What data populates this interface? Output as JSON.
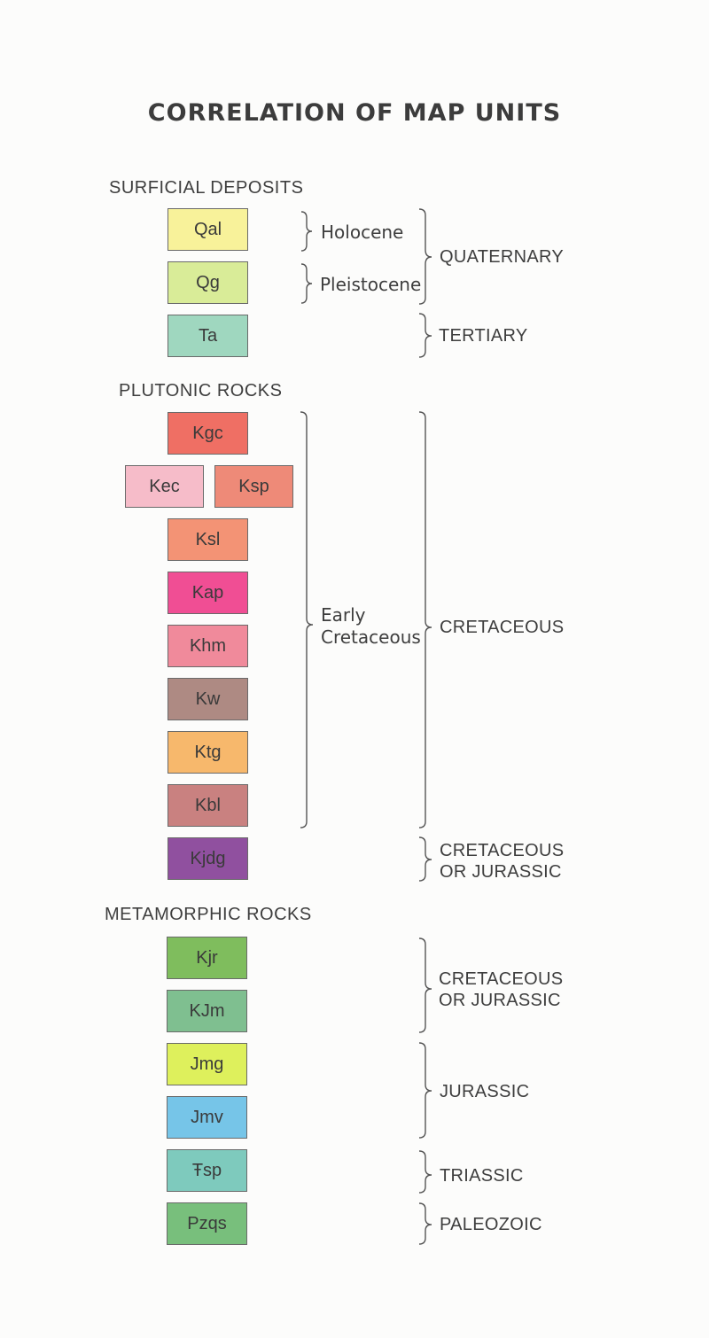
{
  "title": "CORRELATION OF MAP UNITS",
  "sections": {
    "surficial": "SURFICIAL  DEPOSITS",
    "plutonic": "PLUTONIC  ROCKS",
    "metamorphic": "METAMORPHIC  ROCKS"
  },
  "units": {
    "Qal": {
      "label": "Qal",
      "color": "#f8f29a"
    },
    "Qg": {
      "label": "Qg",
      "color": "#d9ec98"
    },
    "Ta": {
      "label": "Ta",
      "color": "#9fd7bf"
    },
    "Kgc": {
      "label": "Kgc",
      "color": "#ef6f64"
    },
    "Kec": {
      "label": "Kec",
      "color": "#f6bcc9"
    },
    "Ksp": {
      "label": "Ksp",
      "color": "#ee8a78"
    },
    "Ksl": {
      "label": "Ksl",
      "color": "#f39375"
    },
    "Kap": {
      "label": "Kap",
      "color": "#f04e94"
    },
    "Khm": {
      "label": "Khm",
      "color": "#f08a9b"
    },
    "Kw": {
      "label": "Kw",
      "color": "#ae8a83"
    },
    "Ktg": {
      "label": "Ktg",
      "color": "#f7b86c"
    },
    "Kbl": {
      "label": "Kbl",
      "color": "#c98180"
    },
    "Kjdg": {
      "label": "Kjdg",
      "color": "#90509f"
    },
    "Kjr": {
      "label": "Kjr",
      "color": "#7fbd5d"
    },
    "KJm": {
      "label": "KJm",
      "color": "#7fbf90"
    },
    "Jmg": {
      "label": "Jmg",
      "color": "#def05c"
    },
    "Jmv": {
      "label": "Jmv",
      "color": "#76c5e8"
    },
    "Trsp": {
      "label": "Ŧsp",
      "color": "#7ecabd"
    },
    "Pzqs": {
      "label": "Pzqs",
      "color": "#78bf7c"
    }
  },
  "epochs": {
    "holocene": "Holocene",
    "pleistocene": "Pleistocene",
    "early_cretaceous_1": "Early",
    "early_cretaceous_2": "Cretaceous"
  },
  "periods": {
    "quaternary": "QUATERNARY",
    "tertiary": "TERTIARY",
    "cretaceous": "CRETACEOUS",
    "cret_or_jur_1_a": "CRETACEOUS",
    "cret_or_jur_1_b": "OR JURASSIC",
    "cret_or_jur_2_a": "CRETACEOUS",
    "cret_or_jur_2_b": "OR JURASSIC",
    "jurassic": "JURASSIC",
    "triassic": "TRIASSIC",
    "paleozoic": "PALEOZOIC"
  }
}
